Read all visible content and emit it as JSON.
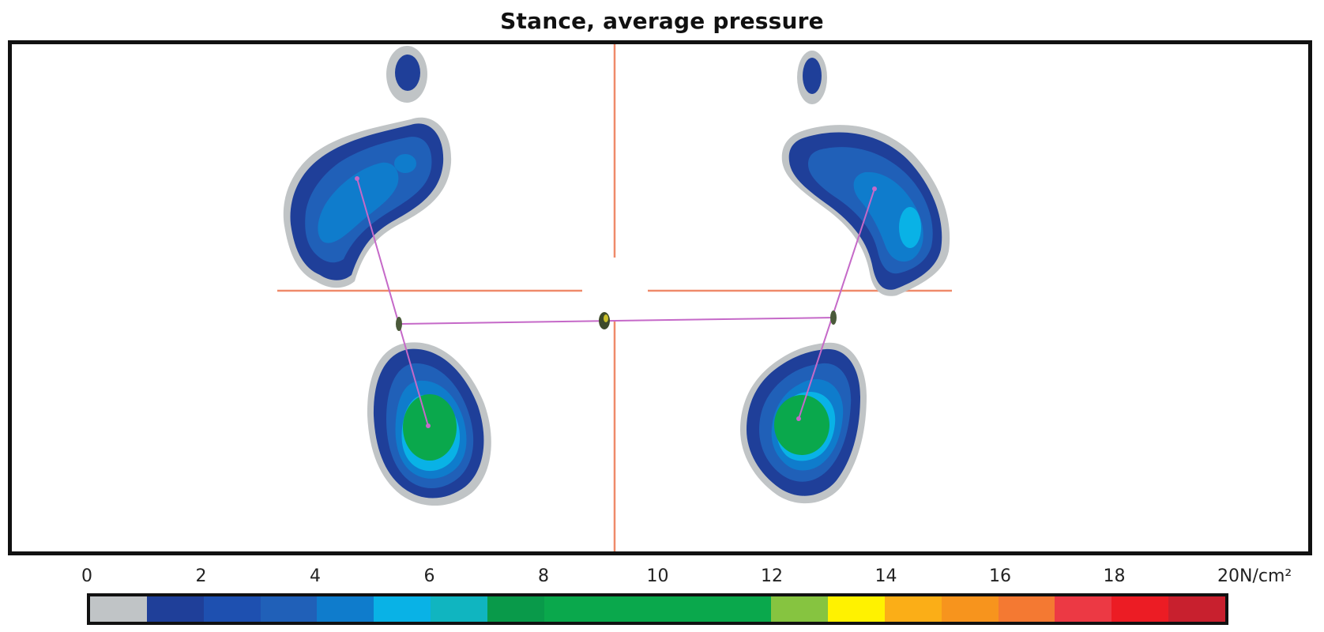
{
  "chart_data": {
    "type": "heatmap",
    "title": "Stance, average pressure",
    "colorbar": {
      "ticks": [
        "0",
        "2",
        "4",
        "6",
        "8",
        "10",
        "12",
        "14",
        "16",
        "18",
        "20"
      ],
      "unit": "N/cm²",
      "range": [
        0,
        20
      ],
      "bins": [
        {
          "from": 0,
          "to": 1,
          "color": "#c0c4c6"
        },
        {
          "from": 1,
          "to": 2,
          "color": "#1f3f99"
        },
        {
          "from": 2,
          "to": 3,
          "color": "#1e50b0"
        },
        {
          "from": 3,
          "to": 4,
          "color": "#2060b8"
        },
        {
          "from": 4,
          "to": 5,
          "color": "#0f7ccc"
        },
        {
          "from": 5,
          "to": 6,
          "color": "#09b2e6"
        },
        {
          "from": 6,
          "to": 7,
          "color": "#10b5c0"
        },
        {
          "from": 7,
          "to": 8,
          "color": "#099a4a"
        },
        {
          "from": 8,
          "to": 9,
          "color": "#0aa84c"
        },
        {
          "from": 9,
          "to": 10,
          "color": "#0aa84c"
        },
        {
          "from": 10,
          "to": 11,
          "color": "#0aa84c"
        },
        {
          "from": 11,
          "to": 12,
          "color": "#0aa84c"
        },
        {
          "from": 12,
          "to": 13,
          "color": "#86c440"
        },
        {
          "from": 13,
          "to": 14,
          "color": "#fff200"
        },
        {
          "from": 14,
          "to": 15,
          "color": "#fbae17"
        },
        {
          "from": 15,
          "to": 16,
          "color": "#f7941d"
        },
        {
          "from": 16,
          "to": 17,
          "color": "#f47932"
        },
        {
          "from": 17,
          "to": 18,
          "color": "#ec3944"
        },
        {
          "from": 18,
          "to": 19,
          "color": "#ec1c24"
        },
        {
          "from": 19,
          "to": 20,
          "color": "#c8202e"
        }
      ]
    },
    "regions": [
      {
        "name": "left forefoot",
        "peak_pressure": 4
      },
      {
        "name": "left hallux",
        "peak_pressure": 2
      },
      {
        "name": "left heel",
        "peak_pressure": 8
      },
      {
        "name": "right forefoot",
        "peak_pressure": 6
      },
      {
        "name": "right hallux",
        "peak_pressure": 2
      },
      {
        "name": "right heel",
        "peak_pressure": 8
      }
    ]
  }
}
